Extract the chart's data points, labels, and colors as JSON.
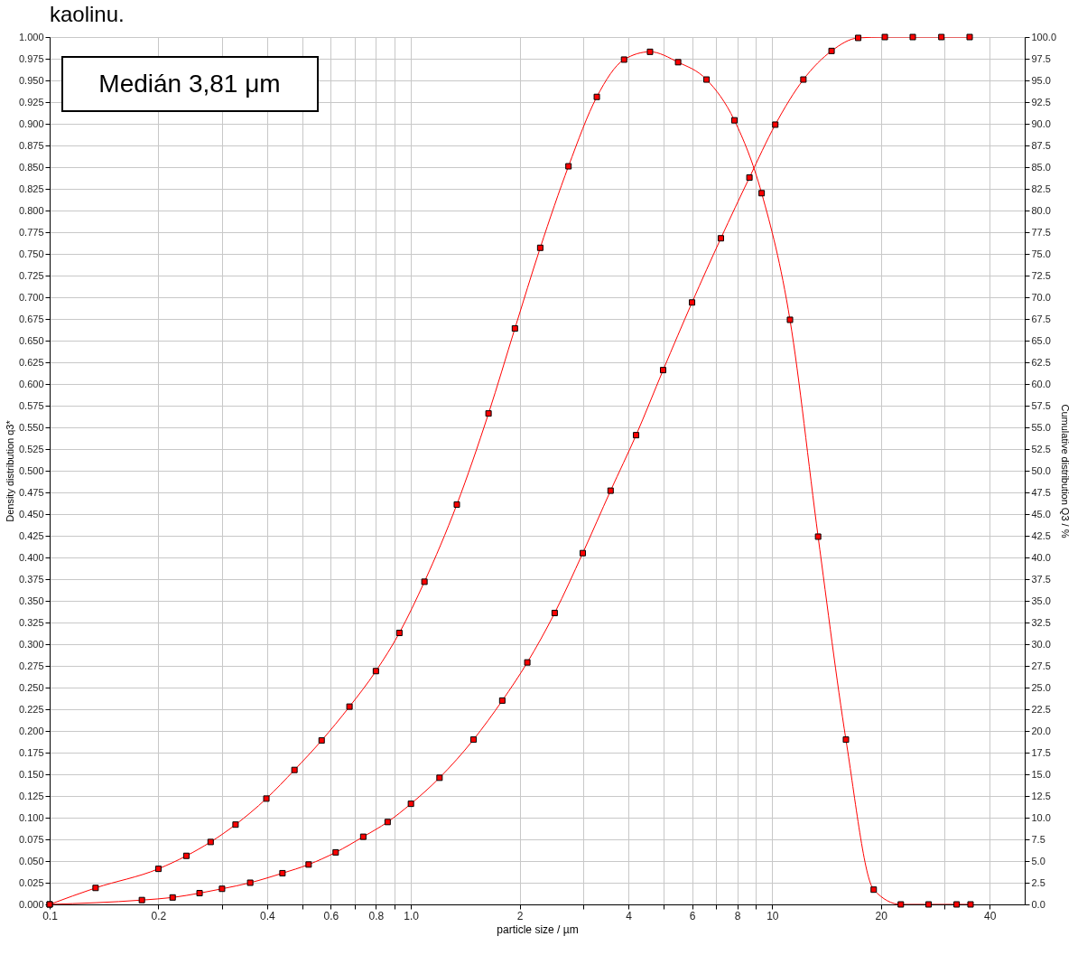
{
  "chart_data": {
    "type": "line",
    "title": "kaolinu.",
    "xlabel": "particle size / µm",
    "ylabel": "Density distribution q3*",
    "y2label": "Cumulative distribution Q3 / %",
    "annotations": [
      "Medián 3,81 μm"
    ],
    "log": "x",
    "grid": true,
    "marker": "square",
    "line_style": "solid",
    "xlim": [
      0.1,
      50
    ],
    "xticks": [
      0.1,
      0.2,
      {
        "value": 0.3,
        "label": null
      },
      0.4,
      {
        "value": 0.5,
        "label": null
      },
      0.6,
      {
        "value": 0.7,
        "label": null
      },
      0.8,
      {
        "value": 0.9,
        "label": null
      },
      {
        "value": 1,
        "label": "1.0"
      },
      2,
      {
        "value": 3,
        "label": null
      },
      4,
      {
        "value": 5,
        "label": null
      },
      6,
      {
        "value": 7,
        "label": null
      },
      8,
      {
        "value": 9,
        "label": null
      },
      10,
      20,
      {
        "value": 30,
        "label": null
      },
      40
    ],
    "ylim": [
      0,
      1
    ],
    "yticks": [
      {
        "value": 0,
        "label": "0.000"
      },
      0.025,
      {
        "value": 0.05,
        "label": "0.050"
      },
      0.075,
      {
        "value": 0.1,
        "label": "0.100"
      },
      0.125,
      {
        "value": 0.15,
        "label": "0.150"
      },
      0.175,
      {
        "value": 0.2,
        "label": "0.200"
      },
      0.225,
      {
        "value": 0.25,
        "label": "0.250"
      },
      0.275,
      {
        "value": 0.3,
        "label": "0.300"
      },
      0.325,
      {
        "value": 0.35,
        "label": "0.350"
      },
      0.375,
      {
        "value": 0.4,
        "label": "0.400"
      },
      0.425,
      {
        "value": 0.45,
        "label": "0.450"
      },
      0.475,
      {
        "value": 0.5,
        "label": "0.500"
      },
      0.525,
      {
        "value": 0.55,
        "label": "0.550"
      },
      0.575,
      {
        "value": 0.6,
        "label": "0.600"
      },
      0.625,
      {
        "value": 0.65,
        "label": "0.650"
      },
      0.675,
      {
        "value": 0.7,
        "label": "0.700"
      },
      0.725,
      {
        "value": 0.75,
        "label": "0.750"
      },
      0.775,
      {
        "value": 0.8,
        "label": "0.800"
      },
      0.825,
      {
        "value": 0.85,
        "label": "0.850"
      },
      0.875,
      {
        "value": 0.9,
        "label": "0.900"
      },
      0.925,
      {
        "value": 0.95,
        "label": "0.950"
      },
      0.975,
      {
        "value": 1,
        "label": "1.000"
      }
    ],
    "y2lim": [
      0,
      100
    ],
    "y2ticks": [
      {
        "value": 0,
        "label": "0.0"
      },
      2.5,
      {
        "value": 5,
        "label": "5.0"
      },
      7.5,
      {
        "value": 10,
        "label": "10.0"
      },
      12.5,
      {
        "value": 15,
        "label": "15.0"
      },
      17.5,
      {
        "value": 20,
        "label": "20.0"
      },
      22.5,
      {
        "value": 25,
        "label": "25.0"
      },
      27.5,
      {
        "value": 30,
        "label": "30.0"
      },
      32.5,
      {
        "value": 35,
        "label": "35.0"
      },
      37.5,
      {
        "value": 40,
        "label": "40.0"
      },
      42.5,
      {
        "value": 45,
        "label": "45.0"
      },
      47.5,
      {
        "value": 50,
        "label": "50.0"
      },
      52.5,
      {
        "value": 55,
        "label": "55.0"
      },
      57.5,
      {
        "value": 60,
        "label": "60.0"
      },
      62.5,
      {
        "value": 65,
        "label": "65.0"
      },
      67.5,
      {
        "value": 70,
        "label": "70.0"
      },
      72.5,
      {
        "value": 75,
        "label": "75.0"
      },
      77.5,
      {
        "value": 80,
        "label": "80.0"
      },
      82.5,
      {
        "value": 85,
        "label": "85.0"
      },
      87.5,
      {
        "value": 90,
        "label": "90.0"
      },
      92.5,
      {
        "value": 95,
        "label": "95.0"
      },
      97.5,
      {
        "value": 100,
        "label": "100.0"
      }
    ],
    "series": [
      {
        "color": "#ff0000",
        "x": [
          0.1,
          0.134,
          0.2,
          0.239,
          0.279,
          0.327,
          0.398,
          0.476,
          0.566,
          0.676,
          0.8,
          0.929,
          1.09,
          1.34,
          1.64,
          1.94,
          2.28,
          2.73,
          3.27,
          3.89,
          4.59,
          5.49,
          6.58,
          7.86,
          9.35,
          11.2,
          13.4,
          16.0,
          19.1,
          22.7,
          27.1,
          32.4,
          35.4
        ],
        "values": [
          0,
          0.019,
          0.041,
          0.056,
          0.072,
          0.092,
          0.122,
          0.155,
          0.189,
          0.228,
          0.269,
          0.313,
          0.372,
          0.461,
          0.566,
          0.664,
          0.757,
          0.851,
          0.931,
          0.974,
          0.983,
          0.971,
          0.951,
          0.904,
          0.82,
          0.674,
          0.424,
          0.19,
          0.017,
          0,
          0,
          0,
          0
        ]
      },
      {
        "color": "#ff0000",
        "axis": "y2",
        "x": [
          0.1,
          0.18,
          0.219,
          0.26,
          0.3,
          0.359,
          0.441,
          0.521,
          0.619,
          0.738,
          0.862,
          1.0,
          1.2,
          1.49,
          1.79,
          2.1,
          2.5,
          2.99,
          3.57,
          4.2,
          4.99,
          6.0,
          7.21,
          8.65,
          10.2,
          12.2,
          14.6,
          17.3,
          20.5,
          24.5,
          29.4,
          35.2
        ],
        "values": [
          0,
          0.5,
          0.8,
          1.3,
          1.8,
          2.5,
          3.6,
          4.6,
          6.0,
          7.8,
          9.5,
          11.6,
          14.6,
          19.0,
          23.5,
          27.9,
          33.6,
          40.5,
          47.7,
          54.1,
          61.6,
          69.4,
          76.8,
          83.8,
          89.9,
          95.1,
          98.4,
          99.9,
          100,
          100,
          100,
          100
        ]
      }
    ]
  }
}
